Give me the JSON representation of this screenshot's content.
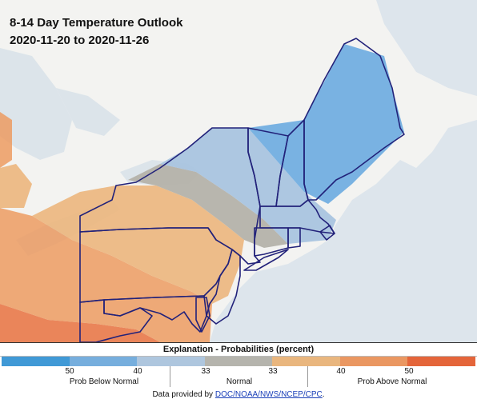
{
  "map": {
    "title_line1": "8-14 Day Temperature Outlook",
    "title_line2": "2020-11-20 to 2020-11-26",
    "colors": {
      "land": "#f4f4f2",
      "water": "#dde6ee",
      "below_40": "#72aee0",
      "below_33": "#a9c4df",
      "normal": "#b4b2aa",
      "above_33": "#ebb57c",
      "above_40": "#eb9a5f",
      "above_50": "#e7713f",
      "state_border": "#22227a"
    }
  },
  "legend": {
    "header": "Explanation - Probabilities (percent)",
    "colors": [
      "#4099d6",
      "#76aedd",
      "#aec6de",
      "#b5b4ad",
      "#e9b67e",
      "#ea9761",
      "#e4653a"
    ],
    "tick_50_left": "50",
    "tick_40_left": "40",
    "tick_33_left": "33",
    "tick_33_right": "33",
    "tick_40_right": "40",
    "tick_50_right": "50",
    "label_below": "Prob Below Normal",
    "label_normal": "Normal",
    "label_above": "Prob Above Normal",
    "footer_prefix": "Data provided by ",
    "footer_link": "DOC/NOAA/NWS/NCEP/CPC",
    "footer_suffix": "."
  }
}
